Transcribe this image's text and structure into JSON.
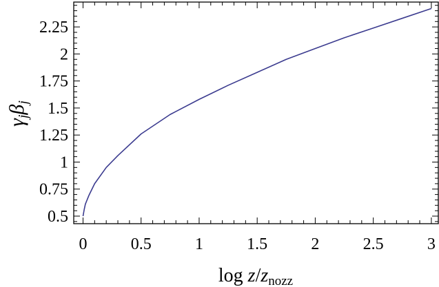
{
  "chart_data": {
    "type": "line",
    "title": "",
    "xlabel": {
      "prefix": "log ",
      "var": "z",
      "sep": "/",
      "denom_var": "z",
      "denom_sub": "nozz"
    },
    "ylabel": {
      "sym1": "γ",
      "sub1": "j",
      "sym2": "β",
      "sub2": "j"
    },
    "xlim": [
      -0.08,
      3.06
    ],
    "ylim": [
      0.43,
      2.48
    ],
    "x_ticks": [
      {
        "value": 0,
        "label": "0"
      },
      {
        "value": 0.5,
        "label": "0.5"
      },
      {
        "value": 1,
        "label": "1"
      },
      {
        "value": 1.5,
        "label": "1.5"
      },
      {
        "value": 2,
        "label": "2"
      },
      {
        "value": 2.5,
        "label": "2.5"
      },
      {
        "value": 3,
        "label": "3"
      }
    ],
    "y_ticks": [
      {
        "value": 0.5,
        "label": "0.5"
      },
      {
        "value": 0.75,
        "label": "0.75"
      },
      {
        "value": 1,
        "label": "1"
      },
      {
        "value": 1.25,
        "label": "1.25"
      },
      {
        "value": 1.5,
        "label": "1.5"
      },
      {
        "value": 1.75,
        "label": "1.75"
      },
      {
        "value": 2,
        "label": "2"
      },
      {
        "value": 2.25,
        "label": "2.25"
      }
    ],
    "x_minor_step": 0.1,
    "y_minor_step": 0.05,
    "grid": false,
    "series": [
      {
        "color": "#3b3b8f",
        "x": [
          0,
          0.01,
          0.02,
          0.05,
          0.1,
          0.2,
          0.3,
          0.5,
          0.75,
          1.0,
          1.25,
          1.5,
          1.75,
          2.0,
          2.25,
          2.5,
          2.75,
          3.0
        ],
        "y": [
          0.5,
          0.56,
          0.61,
          0.69,
          0.8,
          0.95,
          1.06,
          1.26,
          1.44,
          1.58,
          1.71,
          1.83,
          1.95,
          2.05,
          2.15,
          2.24,
          2.33,
          2.42
        ]
      }
    ]
  }
}
